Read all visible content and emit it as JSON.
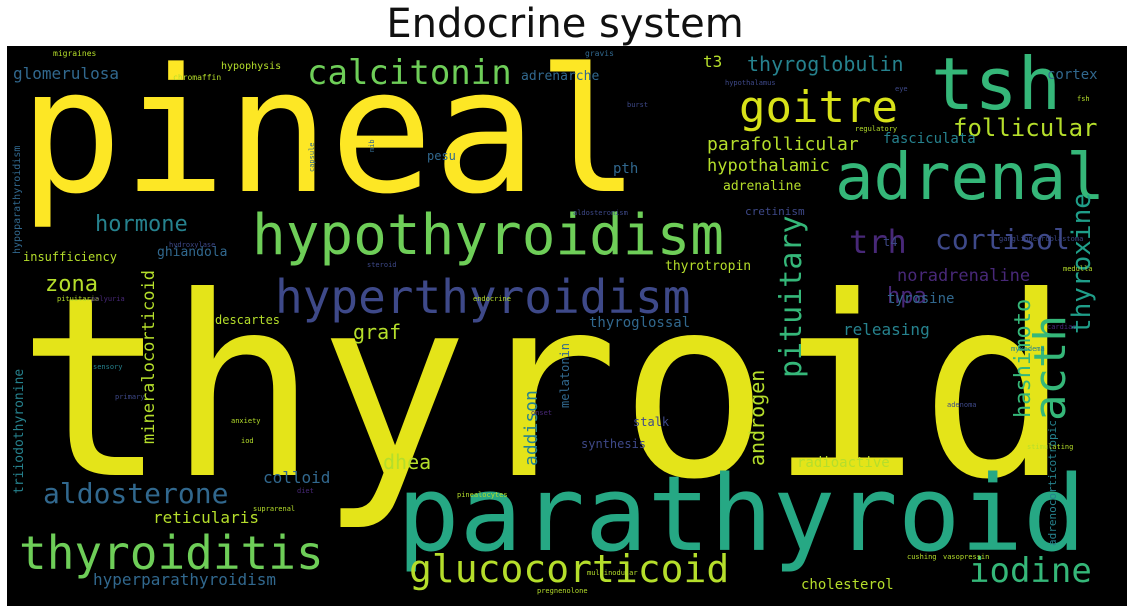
{
  "title": "Endocrine system",
  "palette": {
    "yellow": "#fde725",
    "lime": "#b5de2b",
    "green": "#6ece58",
    "teal": "#35b779",
    "seagreen": "#1f9e89",
    "cyan": "#26828e",
    "blue": "#31688e",
    "indigo": "#3e4989",
    "purple": "#482878",
    "dark": "#440154"
  },
  "words": [
    {
      "text": "thyroid",
      "color": "#e4e419"
    },
    {
      "text": "pineal",
      "color": "#fde725"
    },
    {
      "text": "parathyroid",
      "color": "#26a884"
    },
    {
      "text": "hypothyroidism",
      "color": "#6ece58"
    },
    {
      "text": "adrenal",
      "color": "#35b779"
    },
    {
      "text": "tsh",
      "color": "#35b779"
    },
    {
      "text": "hyperthyroidism",
      "color": "#3e4989"
    },
    {
      "text": "thyroiditis",
      "color": "#6ece58"
    },
    {
      "text": "glucocorticoid",
      "color": "#b5de2b"
    },
    {
      "text": "goitre",
      "color": "#d8e219"
    },
    {
      "text": "calcitonin",
      "color": "#6ece58"
    },
    {
      "text": "iodine",
      "color": "#35b779"
    },
    {
      "text": "acth",
      "color": "#35b779"
    },
    {
      "text": "aldosterone",
      "color": "#31688e"
    },
    {
      "text": "cortisol",
      "color": "#3e4989"
    },
    {
      "text": "follicular",
      "color": "#b5de2b"
    },
    {
      "text": "pituitary",
      "color": "#35b779"
    },
    {
      "text": "thyroxine",
      "color": "#1f9e89"
    },
    {
      "text": "trh",
      "color": "#482878"
    },
    {
      "text": "hormone",
      "color": "#26828e"
    },
    {
      "text": "hashimoto",
      "color": "#35b779"
    },
    {
      "text": "zona",
      "color": "#b5de2b"
    },
    {
      "text": "thyroglobulin",
      "color": "#26828e"
    },
    {
      "text": "parafollicular",
      "color": "#b5de2b"
    },
    {
      "text": "hpa",
      "color": "#482878"
    },
    {
      "text": "androgen",
      "color": "#b5de2b"
    },
    {
      "text": "mineralocorticoid",
      "color": "#b5de2b"
    },
    {
      "text": "hyperparathyroidism",
      "color": "#31688e"
    },
    {
      "text": "hypothalamic",
      "color": "#b5de2b"
    },
    {
      "text": "t3",
      "color": "#b5de2b"
    },
    {
      "text": "noradrenaline",
      "color": "#482878"
    },
    {
      "text": "graf",
      "color": "#b5de2b"
    },
    {
      "text": "addison",
      "color": "#26828e"
    },
    {
      "text": "dhea",
      "color": "#b5de2b"
    },
    {
      "text": "glomerulosa",
      "color": "#31688e"
    },
    {
      "text": "reticularis",
      "color": "#b5de2b"
    },
    {
      "text": "releasing",
      "color": "#26828e"
    },
    {
      "text": "adrenaline",
      "color": "#b5de2b"
    },
    {
      "text": "thyroglossal",
      "color": "#31688e"
    },
    {
      "text": "tyrosine",
      "color": "#31688e"
    },
    {
      "text": "radioactive",
      "color": "#b5de2b"
    },
    {
      "text": "cholesterol",
      "color": "#b5de2b"
    },
    {
      "text": "thyrotropin",
      "color": "#b5de2b"
    },
    {
      "text": "triiodothyronine",
      "color": "#26828e"
    },
    {
      "text": "colloid",
      "color": "#31688e"
    },
    {
      "text": "fasciculata",
      "color": "#26828e"
    },
    {
      "text": "adrenarche",
      "color": "#31688e"
    },
    {
      "text": "insufficiency",
      "color": "#b5de2b"
    },
    {
      "text": "ghiandola",
      "color": "#31688e"
    },
    {
      "text": "descartes",
      "color": "#b5de2b"
    },
    {
      "text": "melatonin",
      "color": "#31688e"
    },
    {
      "text": "pth",
      "color": "#31688e"
    },
    {
      "text": "hypophysis",
      "color": "#b5de2b"
    },
    {
      "text": "cortex",
      "color": "#31688e"
    },
    {
      "text": "cretinism",
      "color": "#3e4989"
    },
    {
      "text": "t4",
      "color": "#3e4989"
    },
    {
      "text": "crh",
      "color": "#31688e"
    },
    {
      "text": "pesu",
      "color": "#31688e"
    },
    {
      "text": "stalk",
      "color": "#3e4989"
    },
    {
      "text": "synthesis",
      "color": "#3e4989"
    },
    {
      "text": "adrenocorticotropic",
      "color": "#26828e"
    },
    {
      "text": "hypoparathyroidism",
      "color": "#31688e"
    },
    {
      "text": "migraines",
      "color": "#b5de2b"
    },
    {
      "text": "chromaffin",
      "color": "#b5de2b"
    },
    {
      "text": "gravis",
      "color": "#31688e"
    },
    {
      "text": "hypothalamus",
      "color": "#3e4989"
    },
    {
      "text": "eye",
      "color": "#3e4989"
    },
    {
      "text": "burst",
      "color": "#3e4989"
    },
    {
      "text": "regulatory",
      "color": "#b5de2b"
    },
    {
      "text": "fsh",
      "color": "#b5de2b"
    },
    {
      "text": "capsule",
      "color": "#31688e"
    },
    {
      "text": "mib",
      "color": "#31688e"
    },
    {
      "text": "aldosteronism",
      "color": "#3e4989"
    },
    {
      "text": "hydroxylase",
      "color": "#3e4989"
    },
    {
      "text": "steroid",
      "color": "#3e4989"
    },
    {
      "text": "ganglioneuroblastoma",
      "color": "#3e4989"
    },
    {
      "text": "pituitaria",
      "color": "#b5de2b"
    },
    {
      "text": "endocrine",
      "color": "#b5de2b"
    },
    {
      "text": "medulla",
      "color": "#b5de2b"
    },
    {
      "text": "cardiac",
      "color": "#482878"
    },
    {
      "text": "myxedema",
      "color": "#26828e"
    },
    {
      "text": "anxiety",
      "color": "#b5de2b"
    },
    {
      "text": "primary",
      "color": "#3e4989"
    },
    {
      "text": "diet",
      "color": "#482878"
    },
    {
      "text": "adenoma",
      "color": "#3e4989"
    },
    {
      "text": "polyuria",
      "color": "#482878"
    },
    {
      "text": "sensory",
      "color": "#26828e"
    },
    {
      "text": "stimulating",
      "color": "#b5de2b"
    },
    {
      "text": "pinealocytes",
      "color": "#b5de2b"
    },
    {
      "text": "suprarenal",
      "color": "#b5de2b"
    },
    {
      "text": "iod",
      "color": "#b5de2b"
    },
    {
      "text": "cushing",
      "color": "#b5de2b"
    },
    {
      "text": "vasopressin",
      "color": "#b5de2b"
    },
    {
      "text": "multinodular",
      "color": "#b5de2b"
    },
    {
      "text": "pregnenolone",
      "color": "#b5de2b"
    },
    {
      "text": "onset",
      "color": "#482878"
    }
  ]
}
